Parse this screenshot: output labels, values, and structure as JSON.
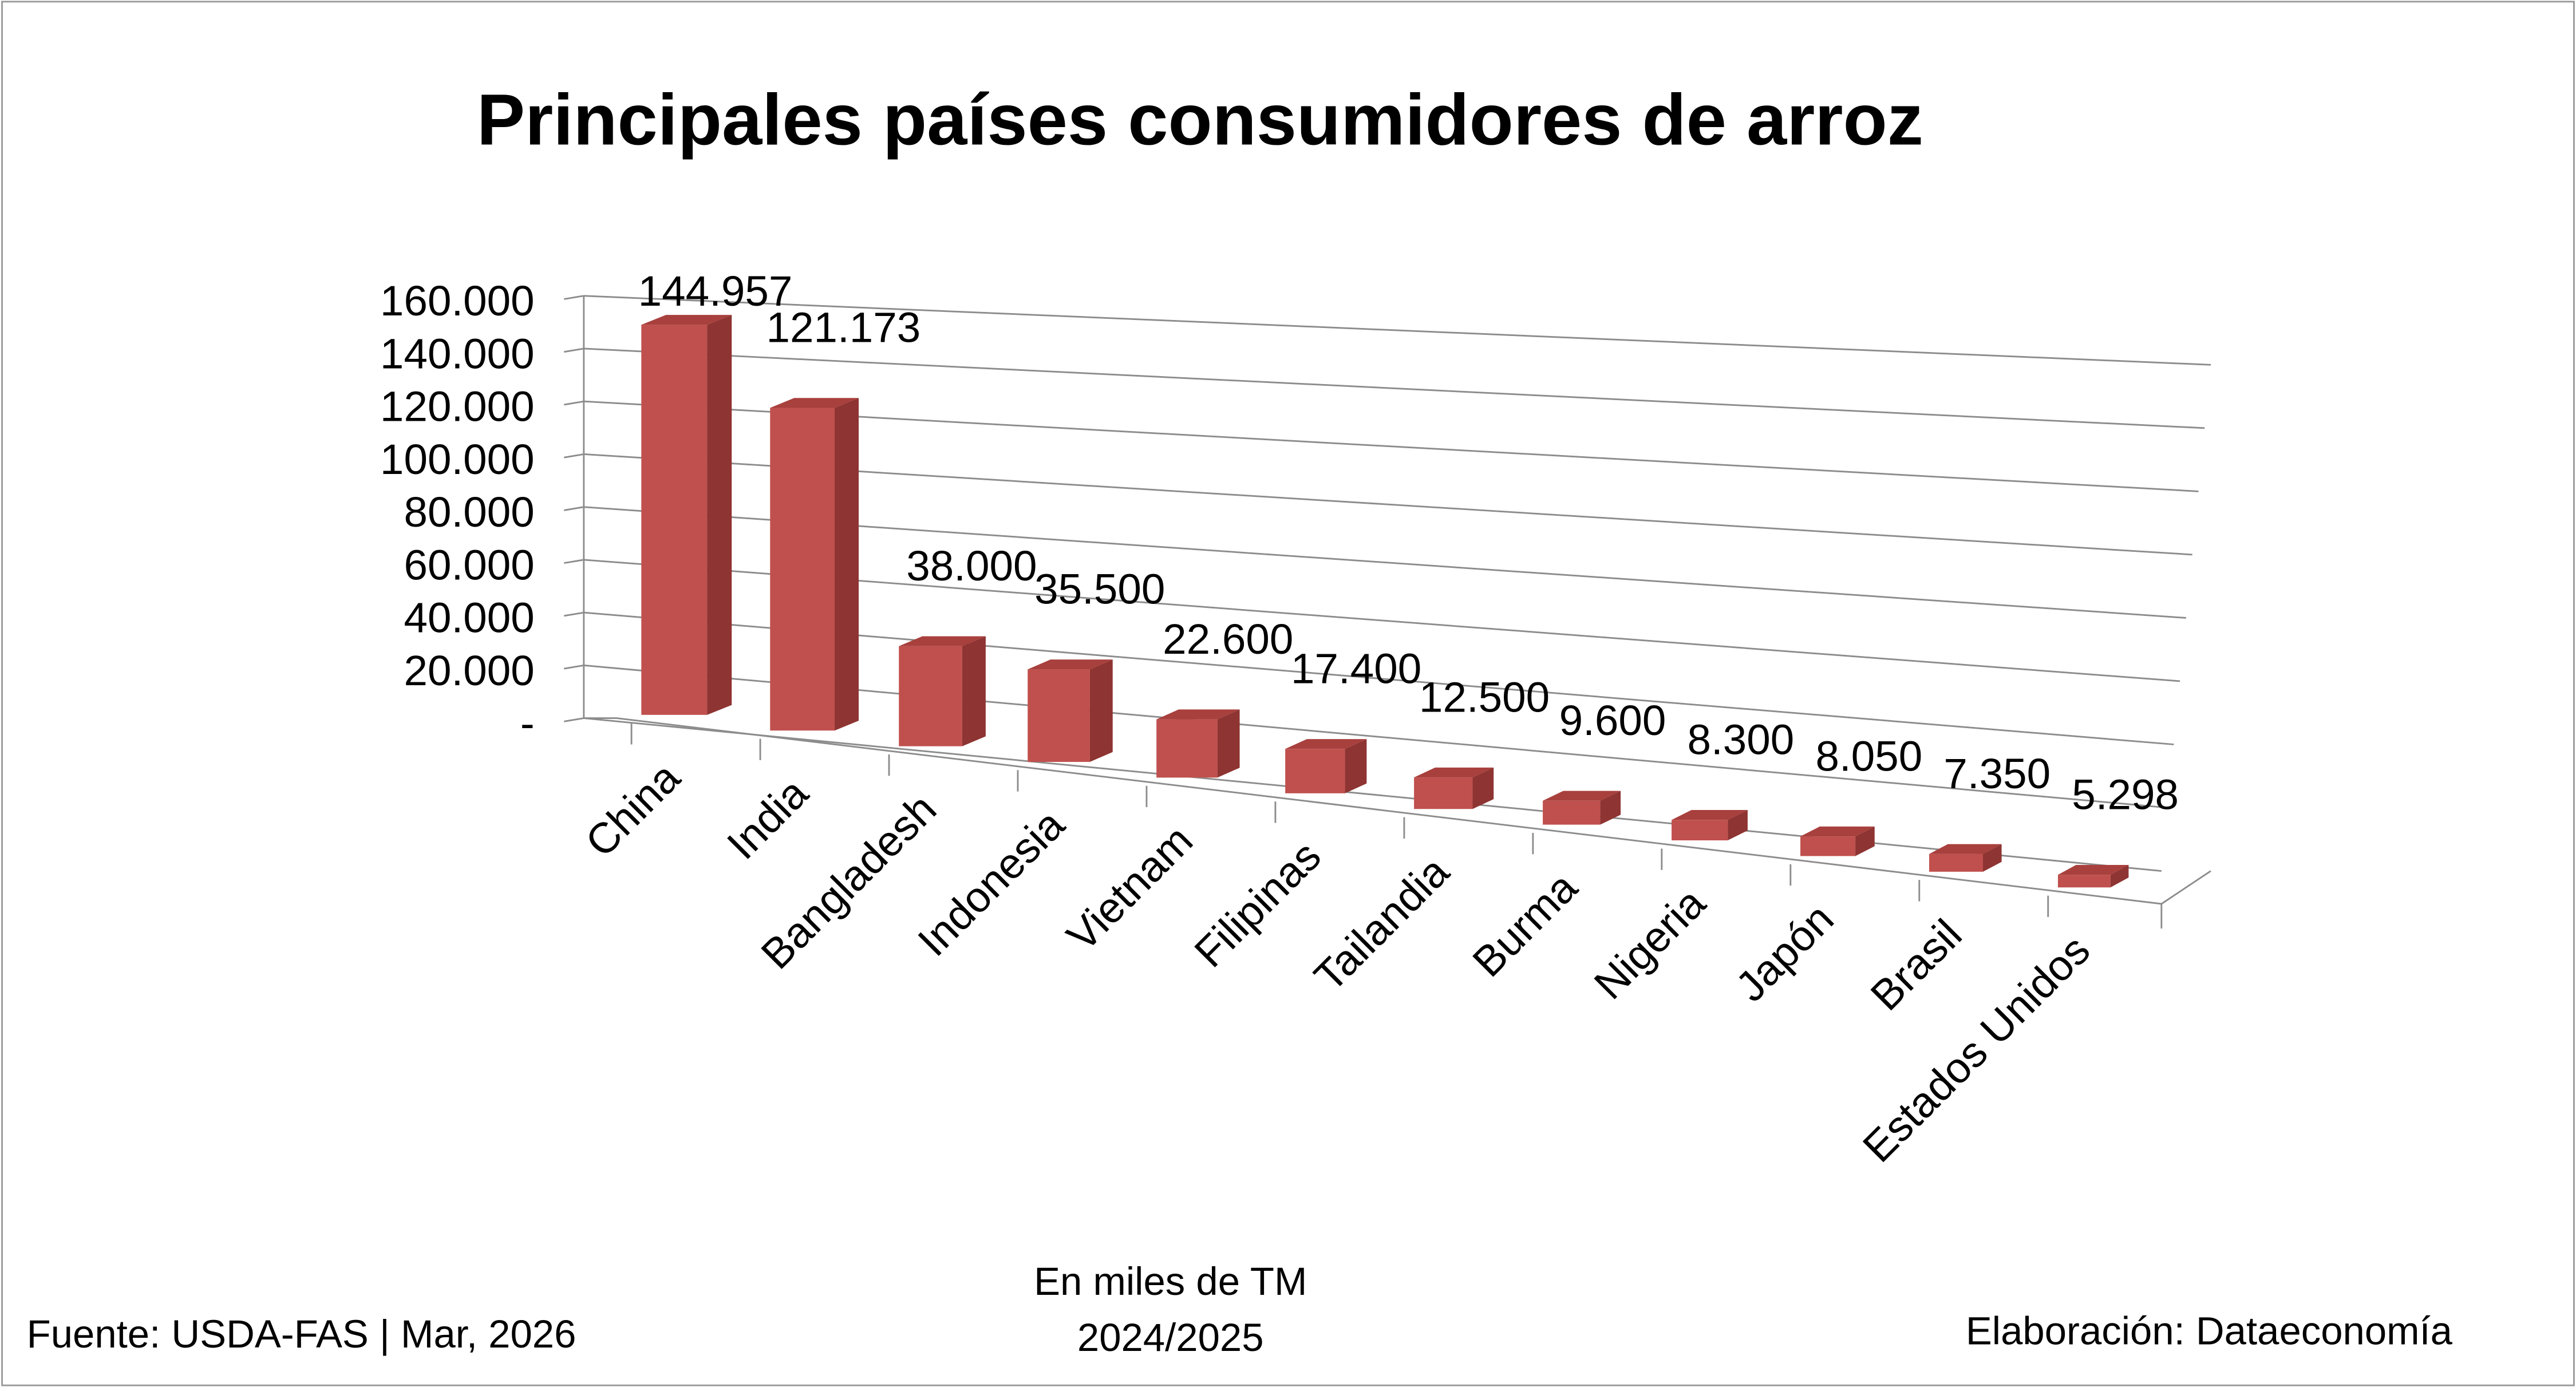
{
  "chart_data": {
    "type": "bar",
    "style": "3d-column",
    "title": "Principales países consumidores de arroz",
    "categories": [
      "China",
      "India",
      "Bangladesh",
      "Indonesia",
      "Vietnam",
      "Filipinas",
      "Tailandia",
      "Burma",
      "Nigeria",
      "Japón",
      "Brasil",
      "Estados Unidos"
    ],
    "values": [
      144957,
      121173,
      38000,
      35500,
      22600,
      17400,
      12500,
      9600,
      8300,
      8050,
      7350,
      5298
    ],
    "value_labels": [
      "144.957",
      "121.173",
      "38.000",
      "35.500",
      "22.600",
      "17.400",
      "12.500",
      "9.600",
      "8.300",
      "8.050",
      "7.350",
      "5.298"
    ],
    "ylim": [
      0,
      160000
    ],
    "yticks": [
      0,
      20000,
      40000,
      60000,
      80000,
      100000,
      120000,
      140000,
      160000
    ],
    "ytick_labels": [
      "-",
      "20.000",
      "40.000",
      "60.000",
      "80.000",
      "100.000",
      "120.000",
      "140.000",
      "160.000"
    ],
    "grid": true,
    "bar_color": "#c0504d",
    "xlabel": "En miles de TM",
    "subtitle": "2024/2025"
  },
  "footer": {
    "source": "Fuente:  USDA-FAS | Mar, 2026",
    "units": "En miles de TM",
    "period": "2024/2025",
    "credit": "Elaboración: Dataeconomía"
  }
}
